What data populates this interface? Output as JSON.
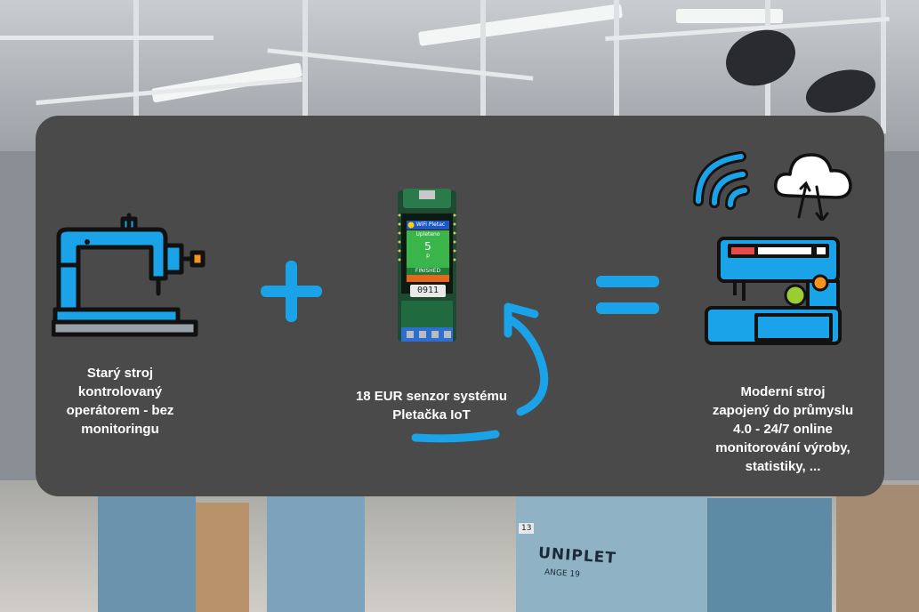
{
  "left": {
    "icon": "old-sewing-machine-icon",
    "caption": "Starý stroj kontrolovaný operátorem - bez monitoringu"
  },
  "operator_plus": "plus-icon",
  "middle": {
    "icon": "iot-sensor-board-icon",
    "device_screen": {
      "header": "WiFi Pletac",
      "label": "Upleteno",
      "count": "5",
      "unit": "p",
      "status": "FINISHED",
      "display_digits": "0911"
    },
    "caption": "18 EUR  senzor systému Pletačka IoT",
    "arrow": "curved-arrow-icon"
  },
  "operator_equals": "equals-icon",
  "right": {
    "icons": [
      "wifi-icon",
      "cloud-sync-icon",
      "modern-sewing-machine-icon"
    ],
    "caption": "Moderní stroj zapojený do průmyslu 4.0 - 24/7 online monitorování výroby, statistiky, ..."
  },
  "background": {
    "description_icon": "factory-background",
    "machine_brand": "UNIPLET",
    "machine_model": "ANGE 19",
    "machine_number": "13"
  },
  "colors": {
    "accent": "#1aa3e8",
    "card": "#4a4a4a",
    "text": "#ffffff",
    "device_green": "#39b54a",
    "device_board": "#1f6a3f"
  }
}
